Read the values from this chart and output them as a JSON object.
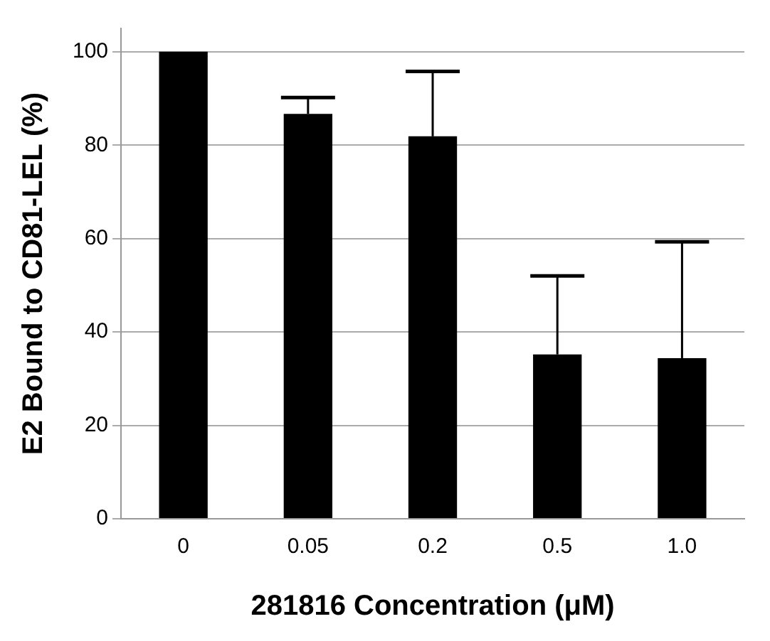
{
  "chart_data": {
    "type": "bar",
    "xlabel": "281816 Concentration (μM)",
    "ylabel": "E2 Bound to CD81-LEL (%)",
    "categories": [
      "0",
      "0.05",
      "0.2",
      "0.5",
      "1.0"
    ],
    "values": [
      100,
      86.7,
      81.9,
      35.2,
      34.4
    ],
    "errors": [
      null,
      [
        86.7,
        90.2
      ],
      [
        81.9,
        95.8
      ],
      [
        35.2,
        52
      ],
      [
        34.4,
        59.3
      ]
    ],
    "color": "#000000",
    "ylim": [
      0,
      105
    ],
    "yticks": [
      0,
      20,
      40,
      60,
      80,
      100
    ],
    "grid": "y",
    "legend": false
  }
}
